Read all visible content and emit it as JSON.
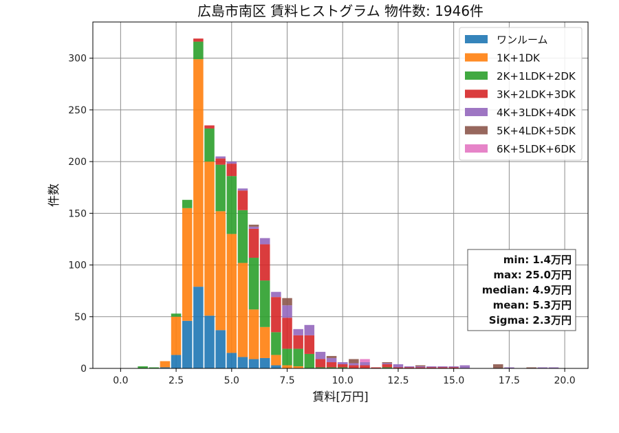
{
  "chart_data": {
    "type": "bar",
    "stacked": true,
    "title": "広島市南区 賃料ヒストグラム 物件数: 1946件",
    "xlabel": "賃料[万円]",
    "ylabel": "件数",
    "xlim": [
      -1.25,
      21.05
    ],
    "ylim": [
      0,
      335
    ],
    "xticks": [
      0.0,
      2.5,
      5.0,
      7.5,
      10.0,
      12.5,
      15.0,
      17.5,
      20.0
    ],
    "xtick_labels": [
      "0.0",
      "2.5",
      "5.0",
      "7.5",
      "10.0",
      "12.5",
      "15.0",
      "17.5",
      "20.0"
    ],
    "yticks": [
      0,
      50,
      100,
      150,
      200,
      250,
      300
    ],
    "ytick_labels": [
      "0",
      "50",
      "100",
      "150",
      "200",
      "250",
      "300"
    ],
    "grid": true,
    "legend_position": "top-right",
    "bin_width": 0.5,
    "x": [
      1.0,
      1.5,
      2.0,
      2.5,
      3.0,
      3.5,
      4.0,
      4.5,
      5.0,
      5.5,
      6.0,
      6.5,
      7.0,
      7.5,
      8.0,
      8.5,
      9.0,
      9.5,
      10.0,
      10.5,
      11.0,
      11.5,
      12.0,
      12.5,
      13.0,
      13.5,
      14.0,
      14.5,
      15.0,
      15.5,
      16.0,
      16.5,
      17.0,
      17.5,
      18.0,
      18.5,
      19.0,
      19.5,
      20.0
    ],
    "series": [
      {
        "name": "ワンルーム",
        "color": "#1f77b4",
        "values": [
          0,
          0,
          1,
          13,
          46,
          79,
          51,
          37,
          15,
          11,
          9,
          10,
          3,
          0,
          0,
          0,
          0,
          0,
          0,
          0,
          0,
          0,
          0,
          0,
          0,
          0,
          0,
          0,
          0,
          0,
          0,
          0,
          0,
          0,
          0,
          0,
          0,
          0,
          0
        ]
      },
      {
        "name": "1K+1DK",
        "color": "#ff7f0e",
        "values": [
          0,
          0,
          6,
          37,
          109,
          220,
          149,
          115,
          115,
          91,
          48,
          30,
          10,
          3,
          2,
          0,
          0,
          0,
          0,
          0,
          0,
          0,
          0,
          0,
          0,
          0,
          0,
          0,
          0,
          0,
          0,
          0,
          0,
          0,
          0,
          0,
          0,
          0,
          0
        ]
      },
      {
        "name": "2K+1LDK+2DK",
        "color": "#2ca02c",
        "values": [
          2,
          1,
          0,
          3,
          8,
          17,
          32,
          45,
          56,
          51,
          50,
          45,
          22,
          16,
          17,
          14,
          1,
          1,
          1,
          0,
          0,
          0,
          1,
          0,
          0,
          0,
          0,
          0,
          0,
          0,
          0,
          0,
          0,
          0,
          0,
          0,
          0,
          0,
          0
        ]
      },
      {
        "name": "3K+2LDK+3DK",
        "color": "#d62728",
        "values": [
          0,
          0,
          0,
          0,
          0,
          3,
          3,
          6,
          12,
          19,
          28,
          35,
          34,
          30,
          13,
          18,
          8,
          5,
          3,
          3,
          3,
          1,
          3,
          1,
          1,
          1,
          1,
          1,
          1,
          0,
          0,
          0,
          0,
          0,
          0,
          0,
          0,
          0,
          0
        ]
      },
      {
        "name": "4K+3LDK+4DK",
        "color": "#9467bd",
        "values": [
          0,
          0,
          0,
          0,
          0,
          0,
          0,
          2,
          2,
          2,
          2,
          6,
          5,
          12,
          6,
          10,
          7,
          4,
          2,
          2,
          3,
          0,
          1,
          3,
          1,
          1,
          1,
          1,
          1,
          3,
          0,
          0,
          0,
          1,
          0,
          0,
          1,
          1,
          0
        ]
      },
      {
        "name": "5K+4LDK+5DK",
        "color": "#8c564b",
        "values": [
          0,
          0,
          0,
          0,
          0,
          0,
          0,
          0,
          0,
          0,
          2,
          0,
          0,
          7,
          0,
          0,
          0,
          2,
          0,
          4,
          0,
          0,
          1,
          0,
          0,
          1,
          0,
          0,
          0,
          0,
          0,
          0,
          4,
          0,
          0,
          1,
          0,
          0,
          0
        ]
      },
      {
        "name": "6K+5LDK+6DK",
        "color": "#e377c2",
        "values": [
          0,
          0,
          0,
          0,
          0,
          0,
          0,
          0,
          0,
          0,
          0,
          0,
          0,
          0,
          0,
          0,
          0,
          0,
          0,
          0,
          3,
          0,
          0,
          0,
          0,
          0,
          0,
          0,
          0,
          0,
          0,
          0,
          0,
          0,
          0,
          0,
          0,
          0,
          0
        ]
      }
    ],
    "stats": [
      "min: 1.4万円",
      "max: 25.0万円",
      "median: 4.9万円",
      "mean: 5.3万円",
      "Sigma: 2.3万円"
    ]
  }
}
